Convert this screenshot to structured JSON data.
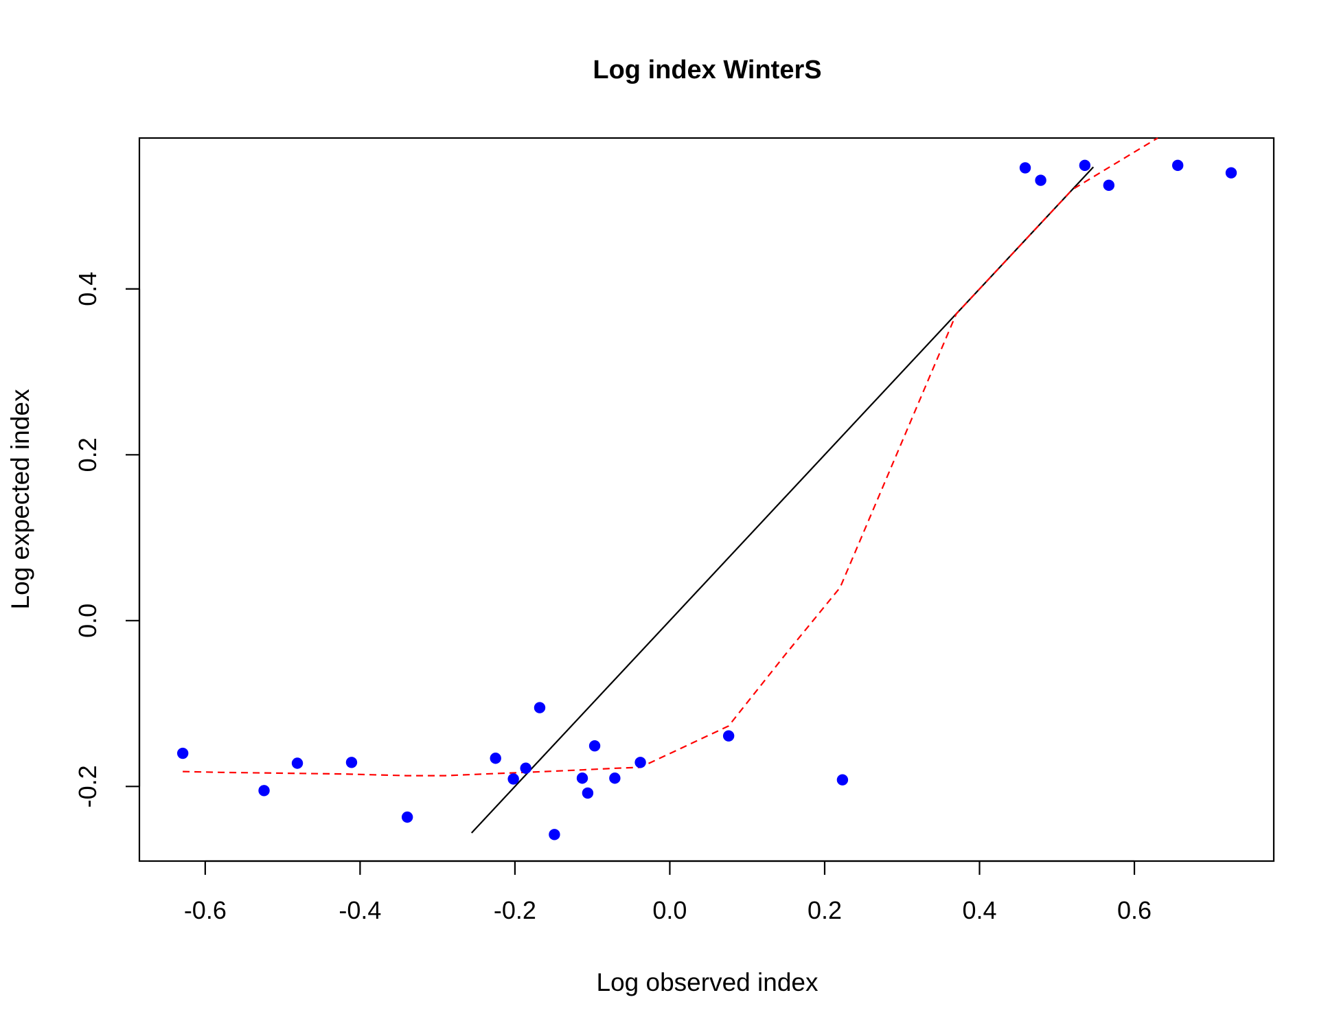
{
  "chart_data": {
    "type": "scatter",
    "title": "Log index WinterS",
    "xlabel": "Log observed index",
    "ylabel": "Log expected index",
    "xlim": [
      -0.685,
      0.78
    ],
    "ylim": [
      -0.29,
      0.582
    ],
    "xticks": [
      -0.6,
      -0.4,
      -0.2,
      0.0,
      0.2,
      0.4,
      0.6
    ],
    "xtick_labels": [
      "-0.6",
      "-0.4",
      "-0.2",
      "0.0",
      "0.2",
      "0.4",
      "0.6"
    ],
    "yticks": [
      -0.2,
      0.0,
      0.2,
      0.4
    ],
    "ytick_labels": [
      "-0.2",
      "0.0",
      "0.2",
      "0.4"
    ],
    "grid": false,
    "points": {
      "color": "#0000ff",
      "x": [
        -0.629,
        -0.524,
        -0.481,
        -0.411,
        -0.339,
        -0.225,
        -0.202,
        -0.186,
        -0.168,
        -0.149,
        -0.113,
        -0.106,
        -0.097,
        -0.071,
        -0.038,
        0.076,
        0.223,
        0.459,
        0.479,
        0.536,
        0.567,
        0.656,
        0.725
      ],
      "y": [
        -0.16,
        -0.205,
        -0.172,
        -0.171,
        -0.237,
        -0.166,
        -0.191,
        -0.178,
        -0.105,
        -0.258,
        -0.19,
        -0.208,
        -0.151,
        -0.19,
        -0.171,
        -0.139,
        -0.192,
        0.546,
        0.531,
        0.549,
        0.525,
        0.549,
        0.54
      ]
    },
    "identity_line": {
      "color": "#000000",
      "x": [
        -0.256,
        0.547
      ],
      "y": [
        -0.256,
        0.547
      ]
    },
    "smooth_line": {
      "color": "#ff0000",
      "style": "dashed",
      "x": [
        -0.629,
        -0.58,
        -0.5,
        -0.42,
        -0.34,
        -0.29,
        -0.24,
        -0.186,
        -0.113,
        -0.07,
        -0.038,
        0.076,
        0.15,
        0.22,
        0.37,
        0.52,
        0.63
      ],
      "y": [
        -0.182,
        -0.183,
        -0.184,
        -0.185,
        -0.187,
        -0.187,
        -0.185,
        -0.183,
        -0.18,
        -0.178,
        -0.177,
        -0.127,
        -0.04,
        0.04,
        0.37,
        0.52,
        0.582
      ]
    }
  }
}
